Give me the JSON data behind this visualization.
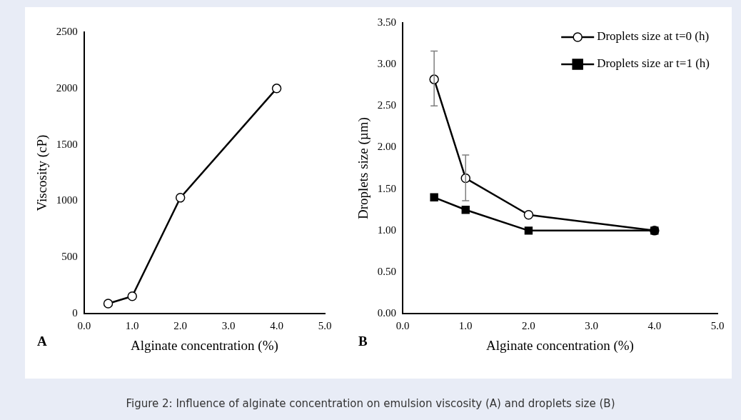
{
  "chart_data": [
    {
      "type": "line",
      "xlabel": "Alginate concentration (%)",
      "ylabel": "Viscosity (cP)",
      "x": [
        0.5,
        1,
        2,
        4
      ],
      "series": [
        {
          "color": "#000000",
          "values": [
            90,
            155,
            1030,
            2000
          ]
        }
      ],
      "xlim": [
        0,
        5
      ],
      "xticks": [
        {
          "value": 0,
          "label": "0.0"
        },
        {
          "value": 1,
          "label": "1.0"
        },
        {
          "value": 2,
          "label": "2.0"
        },
        {
          "value": 3,
          "label": "3.0"
        },
        {
          "value": 4,
          "label": "4.0"
        },
        {
          "value": 5,
          "label": "5.0"
        }
      ],
      "ylim": [
        0,
        2500
      ],
      "yticks": [
        0,
        500,
        1000,
        1500,
        2000,
        2500
      ],
      "grid": false,
      "legend": false,
      "marker": "circle",
      "line_style": "solid",
      "annotations": [
        "A"
      ]
    },
    {
      "type": "line",
      "xlabel": "Alginate concentration (%)",
      "ylabel": "Droplets size (µm)",
      "x": [
        0.5,
        1,
        2,
        4
      ],
      "series": [
        {
          "name": "Droplets size at t=0 (h)",
          "color": "#000000",
          "marker": "circle",
          "values": [
            2.82,
            1.63,
            1.19,
            1.0
          ],
          "errors": [
            [
              2.5,
              3.16
            ],
            [
              1.36,
              1.91
            ],
            null,
            null
          ]
        },
        {
          "name": "Droplets size ar t=1 (h)",
          "color": "#000000",
          "marker": "square",
          "values": [
            1.4,
            1.25,
            1.0,
            1.0
          ]
        }
      ],
      "xlim": [
        0,
        5
      ],
      "xticks": [
        {
          "value": 0,
          "label": "0.0"
        },
        {
          "value": 1,
          "label": "1.0"
        },
        {
          "value": 2,
          "label": "2.0"
        },
        {
          "value": 3,
          "label": "3.0"
        },
        {
          "value": 4,
          "label": "4.0"
        },
        {
          "value": 5,
          "label": "5.0"
        }
      ],
      "ylim": [
        0,
        3.5
      ],
      "yticks": [
        {
          "value": 0,
          "label": "0.00"
        },
        {
          "value": 0.5,
          "label": "0.50"
        },
        {
          "value": 1,
          "label": "1.00"
        },
        {
          "value": 1.5,
          "label": "1.50"
        },
        {
          "value": 2,
          "label": "2.00"
        },
        {
          "value": 2.5,
          "label": "2.50"
        },
        {
          "value": 3,
          "label": "3.00"
        },
        {
          "value": 3.5,
          "label": "3.50"
        }
      ],
      "grid": false,
      "legend": "top right",
      "line_style": "solid",
      "annotations": [
        "B",
        "Figure 2: Influence of alginate concentration on emulsion viscosity (A) and droplets size (B)"
      ]
    }
  ]
}
